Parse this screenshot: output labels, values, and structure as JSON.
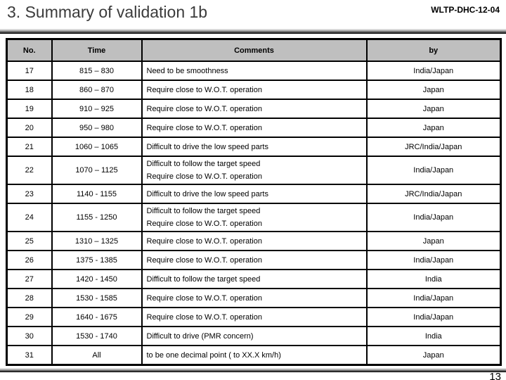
{
  "slide": {
    "title": "3. Summary of validation 1b",
    "doc_code": "WLTP-DHC-12-04",
    "page_number": "13"
  },
  "colors": {
    "header_bg": "#bfbfbf",
    "table_border": "#000000",
    "title_text": "#3b3b3b",
    "divider_gradient_dark": "#000000"
  },
  "table": {
    "columns": [
      "No.",
      "Time",
      "Comments",
      "by"
    ],
    "rows": [
      {
        "no": "17",
        "time": "815 – 830",
        "comments": [
          "Need to be smoothness"
        ],
        "by": "India/Japan"
      },
      {
        "no": "18",
        "time": "860 – 870",
        "comments": [
          "Require close to W.O.T. operation"
        ],
        "by": "Japan"
      },
      {
        "no": "19",
        "time": "910 – 925",
        "comments": [
          "Require close to W.O.T. operation"
        ],
        "by": "Japan"
      },
      {
        "no": "20",
        "time": "950 – 980",
        "comments": [
          "Require close to W.O.T. operation"
        ],
        "by": "Japan"
      },
      {
        "no": "21",
        "time": "1060 – 1065",
        "comments": [
          "Difficult to drive the low speed parts"
        ],
        "by": "JRC/India/Japan"
      },
      {
        "no": "22",
        "time": "1070 – 1125",
        "comments": [
          "Difficult to follow the target speed",
          "Require close to W.O.T. operation"
        ],
        "by": "India/Japan"
      },
      {
        "no": "23",
        "time": "1140 - 1155",
        "comments": [
          "Difficult to drive the low speed parts"
        ],
        "by": "JRC/India/Japan"
      },
      {
        "no": "24",
        "time": "1155 - 1250",
        "comments": [
          "Difficult to follow the target speed",
          "Require close to W.O.T. operation"
        ],
        "by": "India/Japan"
      },
      {
        "no": "25",
        "time": "1310 – 1325",
        "comments": [
          "Require close to W.O.T. operation"
        ],
        "by": "Japan"
      },
      {
        "no": "26",
        "time": "1375 - 1385",
        "comments": [
          "Require close to W.O.T. operation"
        ],
        "by": "India/Japan"
      },
      {
        "no": "27",
        "time": "1420 - 1450",
        "comments": [
          "Difficult to follow the target speed"
        ],
        "by": "India"
      },
      {
        "no": "28",
        "time": "1530 - 1585",
        "comments": [
          "Require close to W.O.T. operation"
        ],
        "by": "India/Japan"
      },
      {
        "no": "29",
        "time": "1640 - 1675",
        "comments": [
          "Require close to W.O.T. operation"
        ],
        "by": "India/Japan"
      },
      {
        "no": "30",
        "time": "1530 - 1740",
        "comments": [
          "Difficult to drive (PMR concern)"
        ],
        "by": "India"
      },
      {
        "no": "31",
        "time": "All",
        "comments": [
          "to be one decimal point ( to XX.X km/h)"
        ],
        "by": "Japan"
      }
    ]
  }
}
